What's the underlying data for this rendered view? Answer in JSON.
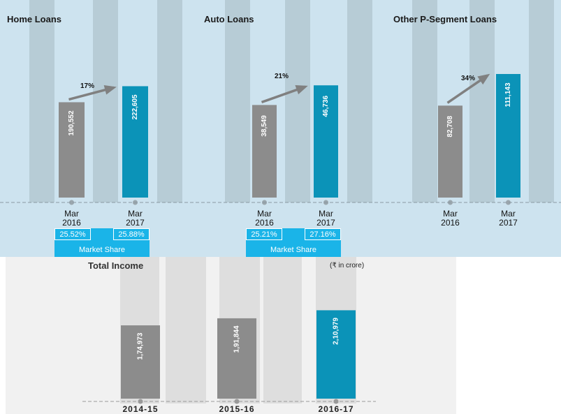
{
  "colors": {
    "prev_bar": "#8c8c8c",
    "curr_bar": "#0b93b8",
    "stripe_top": "#b7ccd6",
    "stripe_bottom": "#dedede",
    "market_share_box": "#1ab4e8",
    "arrow": "#808080"
  },
  "chart_data": [
    {
      "type": "bar",
      "title": "Home Loans",
      "categories": [
        "Mar\n2016",
        "Mar\n2017"
      ],
      "category_lines": [
        [
          "Mar",
          "2016"
        ],
        [
          "Mar",
          "2017"
        ]
      ],
      "values": [
        190552,
        222605
      ],
      "value_labels": [
        "190,552",
        "222,605"
      ],
      "growth_label": "17%",
      "ylim": [
        0,
        300000
      ],
      "market_share": {
        "label": "Market Share",
        "values": [
          "25.52%",
          "25.88%"
        ]
      }
    },
    {
      "type": "bar",
      "title": "Auto Loans",
      "categories": [
        "Mar\n2016",
        "Mar\n2017"
      ],
      "category_lines": [
        [
          "Mar",
          "2016"
        ],
        [
          "Mar",
          "2017"
        ]
      ],
      "values": [
        38549,
        46736
      ],
      "value_labels": [
        "38,549",
        "46,736"
      ],
      "growth_label": "21%",
      "ylim": [
        0,
        62500
      ],
      "market_share": {
        "label": "Market Share",
        "values": [
          "25.21%",
          "27.16%"
        ]
      }
    },
    {
      "type": "bar",
      "title": "Other P-Segment Loans",
      "categories": [
        "Mar\n2016",
        "Mar\n2017"
      ],
      "category_lines": [
        [
          "Mar",
          "2016"
        ],
        [
          "Mar",
          "2017"
        ]
      ],
      "values": [
        82708,
        111143
      ],
      "value_labels": [
        "82,708",
        "111,143"
      ],
      "growth_label": "34%",
      "ylim": [
        0,
        135000
      ]
    },
    {
      "type": "bar",
      "title": "Total Income",
      "unit_note": "(₹ in crore)",
      "categories": [
        "2014-15",
        "2015-16",
        "2016-17"
      ],
      "values": [
        174973,
        191844,
        210979
      ],
      "value_labels": [
        "1,74,973",
        "1,91,844",
        "2,10,979"
      ],
      "ylim": [
        0,
        330000
      ]
    }
  ]
}
